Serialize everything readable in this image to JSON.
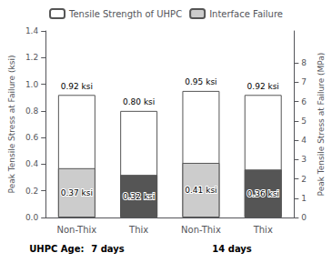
{
  "chart_data": {
    "type": "bar",
    "categories": [
      "Non-Thix",
      "Thix",
      "Non-Thix",
      "Thix"
    ],
    "series": [
      {
        "name": "Tensile Strength of UHPC",
        "color": "#ffffff",
        "values": [
          0.92,
          0.8,
          0.95,
          0.92
        ],
        "value_labels": [
          "0.92 ksi",
          "0.80 ksi",
          "0.95 ksi",
          "0.92 ksi"
        ]
      },
      {
        "name": "Interface Failure",
        "colors": [
          "#cccccc",
          "#555555",
          "#cccccc",
          "#555555"
        ],
        "values": [
          0.37,
          0.32,
          0.41,
          0.36
        ],
        "value_labels": [
          "0.37 ksi",
          "0.32 ksi",
          "0.41 ksi",
          "0.36 ksi"
        ]
      }
    ],
    "y_label": "Peak Tensile Stress at Failure (ksi)",
    "y2_label": "Peak Tensile Stress at Failure (MPa)",
    "ylim": [
      0,
      1.4
    ],
    "yticks": [
      {
        "value": 0.0,
        "label": "0.0"
      },
      0.2,
      0.4,
      0.6,
      0.8,
      {
        "value": 1.0,
        "label": "1.0"
      },
      1.2,
      1.4
    ],
    "y2lim": [
      0,
      9.652664
    ],
    "y2ticks": [
      0,
      1,
      2,
      3,
      4,
      5,
      6,
      7,
      8
    ],
    "annotations": [
      "UHPC Age:",
      "7 days",
      "14 days"
    ],
    "data_labels": true,
    "legend": "top",
    "grid": false
  }
}
